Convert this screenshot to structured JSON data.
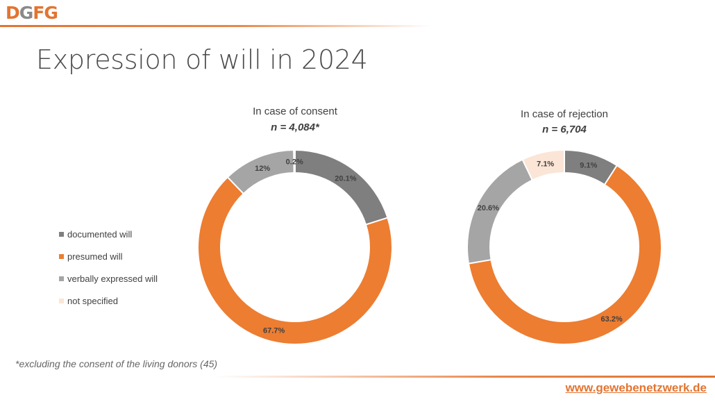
{
  "header": {
    "logo_letters": [
      "D",
      "G",
      "F",
      "G"
    ],
    "title": "Expression of will in 2024"
  },
  "colors": {
    "documented": "#7f7f7f",
    "presumed": "#ed7d31",
    "verbal": "#a5a5a5",
    "not_specified": "#fbe5d6",
    "brand": "#e27431"
  },
  "legend": {
    "placement": "left",
    "items": [
      {
        "label": "documented will",
        "color": "#7f7f7f"
      },
      {
        "label": "presumed will",
        "color": "#ed7d31"
      },
      {
        "label": "verbally expressed will",
        "color": "#a5a5a5"
      },
      {
        "label": "not specified",
        "color": "#fbe5d6"
      }
    ]
  },
  "chart_data": [
    {
      "type": "pie",
      "title": "In case of consent",
      "subtitle": "n = 4,084*",
      "categories": [
        "documented will",
        "presumed will",
        "verbally expressed will",
        "not specified"
      ],
      "values": [
        20.1,
        67.7,
        12.0,
        0.2
      ],
      "labels": [
        "20.1%",
        "67.7%",
        "12%",
        "0.2%"
      ]
    },
    {
      "type": "pie",
      "title": "In case of rejection",
      "subtitle": "n = 6,704",
      "categories": [
        "documented will",
        "presumed will",
        "verbally expressed will",
        "not specified"
      ],
      "values": [
        9.1,
        63.2,
        20.6,
        7.1
      ],
      "labels": [
        "9.1%",
        "63.2%",
        "20.6%",
        "7.1%"
      ]
    }
  ],
  "footer": {
    "footnote": "*excluding the consent of the living donors (45)",
    "website": "www.gewebenetzwerk.de"
  }
}
